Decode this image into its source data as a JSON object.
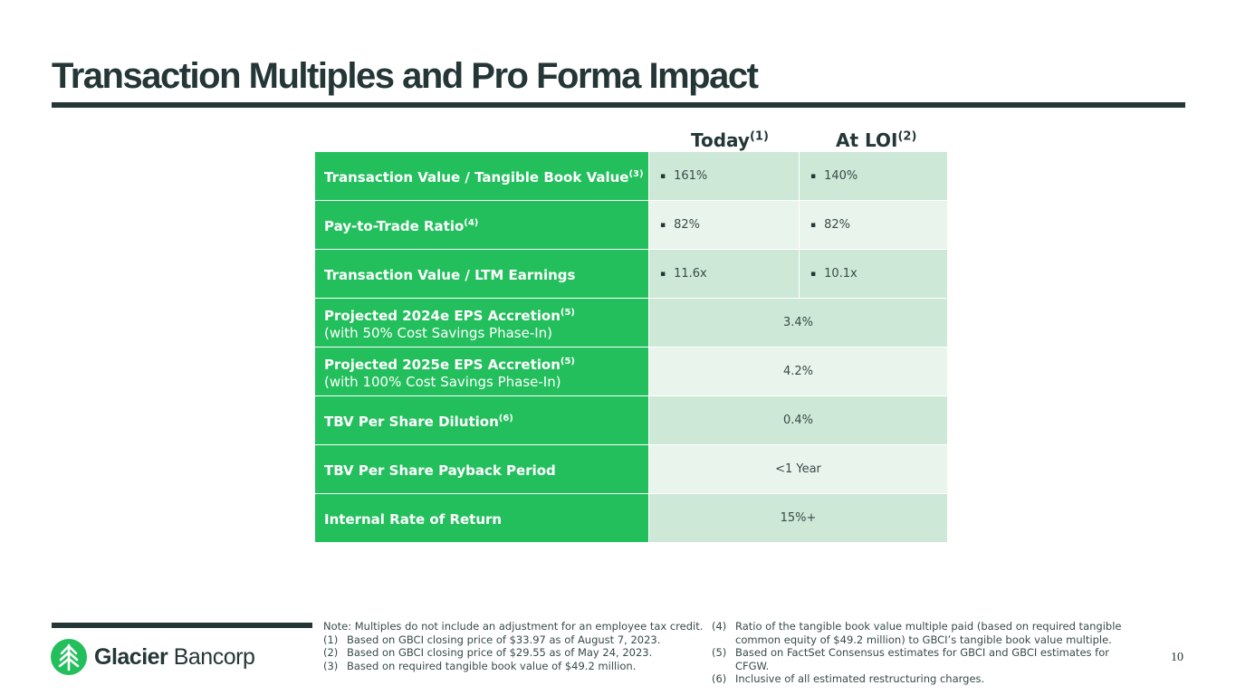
{
  "title": "Transaction Multiples and Pro Forma Impact",
  "columns": {
    "today": {
      "label": "Today",
      "note": "(1)"
    },
    "loi": {
      "label": "At LOI",
      "note": "(2)"
    }
  },
  "rows": [
    {
      "label": "Transaction Value / Tangible Book Value",
      "note": "(3)",
      "today": "161%",
      "loi": "140%"
    },
    {
      "label": "Pay-to-Trade Ratio",
      "note": "(4)",
      "today": "82%",
      "loi": "82%"
    },
    {
      "label": "Transaction Value / LTM Earnings",
      "note": "",
      "today": "11.6x",
      "loi": "10.1x"
    },
    {
      "label": "Projected 2024e EPS Accretion",
      "note": "(5)",
      "sub": "(with 50% Cost Savings Phase-In)",
      "value": "3.4%"
    },
    {
      "label": "Projected 2025e EPS Accretion",
      "note": "(5)",
      "sub": "(with 100% Cost Savings Phase-In)",
      "value": "4.2%"
    },
    {
      "label": "TBV Per Share Dilution",
      "note": "(6)",
      "value": "0.4%"
    },
    {
      "label": "TBV Per Share Payback Period",
      "note": "",
      "value": "<1 Year"
    },
    {
      "label": "Internal Rate of Return",
      "note": "",
      "value": "15%+"
    }
  ],
  "bullet_glyph": "▪",
  "logo": {
    "name_bold": "Glacier",
    "name_light": " Bancorp",
    "icon": "glacier-tree-icon"
  },
  "notes_left": {
    "intro": "Note: Multiples do not include an adjustment for an employee tax credit.",
    "items": [
      {
        "num": "(1)",
        "text": "Based on GBCI closing price of $33.97 as of August 7, 2023."
      },
      {
        "num": "(2)",
        "text": "Based on GBCI closing price of $29.55 as of May 24, 2023."
      },
      {
        "num": "(3)",
        "text": "Based on required tangible book value of $49.2 million."
      }
    ]
  },
  "notes_right": {
    "items": [
      {
        "num": "(4)",
        "text": "Ratio of the tangible book value multiple paid (based on required tangible common equity of $49.2 million) to GBCI’s tangible book value multiple."
      },
      {
        "num": "(5)",
        "text": "Based on FactSet Consensus estimates for GBCI and GBCI estimates for CFGW."
      },
      {
        "num": "(6)",
        "text": "Inclusive of all estimated restructuring charges."
      }
    ]
  },
  "page_number": "10",
  "colors": {
    "dark_teal": "#243636",
    "green": "#23bf5d",
    "mint_dark": "#cde8d6",
    "mint_light": "#e8f4ec"
  }
}
